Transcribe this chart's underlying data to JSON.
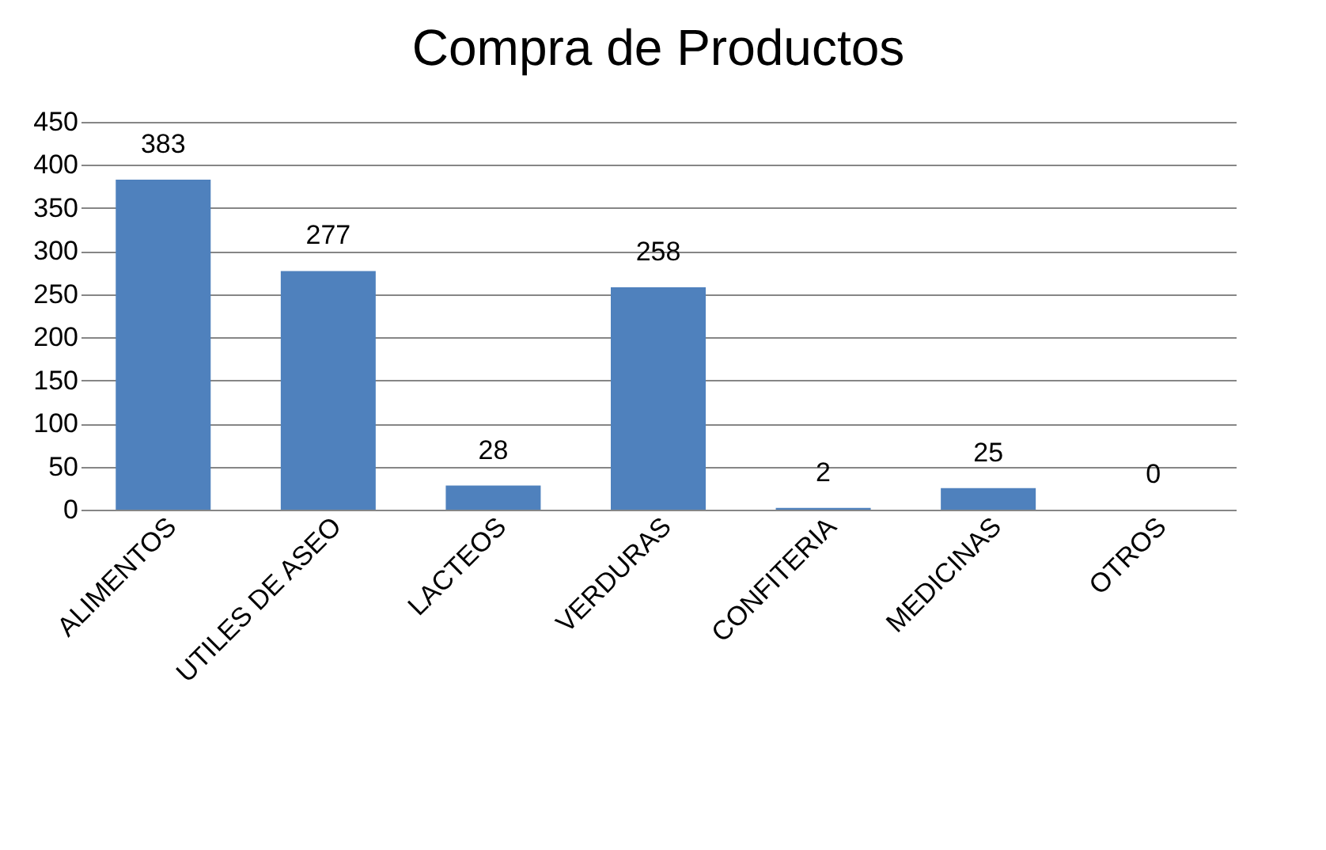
{
  "chart_data": {
    "type": "bar",
    "title": "Compra de Productos",
    "categories": [
      "ALIMENTOS",
      "UTILES DE ASEO",
      "LACTEOS",
      "VERDURAS",
      "CONFITERIA",
      "MEDICINAS",
      "OTROS"
    ],
    "values": [
      383,
      277,
      28,
      258,
      2,
      25,
      0
    ],
    "color": "#4f81bd",
    "ylim": [
      0,
      450
    ],
    "yticks": [
      0,
      50,
      100,
      150,
      200,
      250,
      300,
      350,
      400,
      450
    ],
    "grid": "y",
    "data_labels": true
  }
}
